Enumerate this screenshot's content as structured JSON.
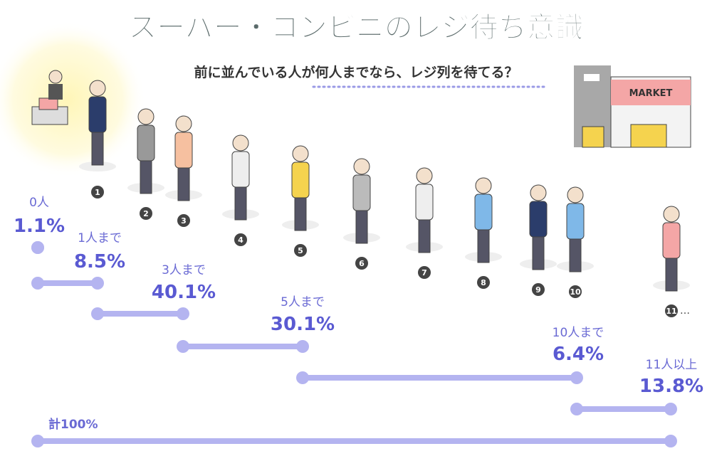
{
  "header": {
    "title": "スーパー・コンビニのレジ待ち意識",
    "question": "前に並んでいる人が何人までなら、レジ列を待てる？"
  },
  "store": {
    "sign": "MARKET"
  },
  "people": {
    "numbers": [
      "1",
      "2",
      "3",
      "4",
      "5",
      "6",
      "7",
      "8",
      "9",
      "10",
      "11"
    ],
    "more": "…"
  },
  "answers": [
    {
      "label": "0人",
      "share": "1.1%"
    },
    {
      "label": "1人まで",
      "share": "8.5%"
    },
    {
      "label": "3人まで",
      "share": "40.1%"
    },
    {
      "label": "5人まで",
      "share": "30.1%"
    },
    {
      "label": "10人まで",
      "share": "6.4%"
    },
    {
      "label": "11人以上",
      "share": "13.8%"
    }
  ],
  "total": "計100%"
}
